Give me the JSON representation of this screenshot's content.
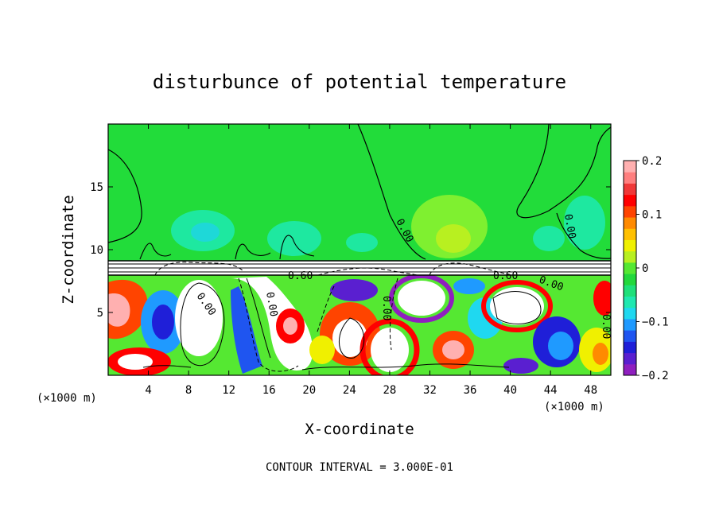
{
  "chart_data": {
    "type": "heatmap",
    "title": "disturbunce of potential temperature",
    "xlabel": "X-coordinate",
    "ylabel": "Z-coordinate",
    "x_unit_note": "(×1000 m)",
    "z_unit_note": "(×1000 m)",
    "xlim": [
      0,
      50
    ],
    "ylim": [
      0,
      20
    ],
    "x_ticks": [
      4,
      8,
      12,
      16,
      20,
      24,
      28,
      32,
      36,
      40,
      44,
      48
    ],
    "x_tick_labels": [
      "4",
      "8",
      "12",
      "16",
      "20",
      "24",
      "28",
      "32",
      "36",
      "40",
      "44",
      "48"
    ],
    "y_ticks": [
      5,
      10,
      15
    ],
    "y_tick_labels": [
      "5",
      "10",
      "15"
    ],
    "colorbar": {
      "min": -0.2,
      "max": 0.2,
      "ticks": [
        0.2,
        0.1,
        0,
        -0.1,
        -0.2
      ],
      "tick_labels": [
        "0.2",
        "0.1",
        "0",
        "−0.1",
        "−0.2"
      ],
      "colors": [
        "#8f1fbf",
        "#5a1fd0",
        "#1f1fd8",
        "#1f55f0",
        "#1f9aff",
        "#1fd8f0",
        "#1fe8b0",
        "#1ee07a",
        "#22d83c",
        "#55e832",
        "#b8f020",
        "#f0f000",
        "#ffc000",
        "#ff8a00",
        "#ff4400",
        "#ff0000",
        "#f03838",
        "#ff7f7f",
        "#ffb0b0"
      ]
    },
    "contour_labels": [
      "0.00",
      "0.60"
    ],
    "footer": "CONTOUR INTERVAL = 3.000E-01"
  }
}
